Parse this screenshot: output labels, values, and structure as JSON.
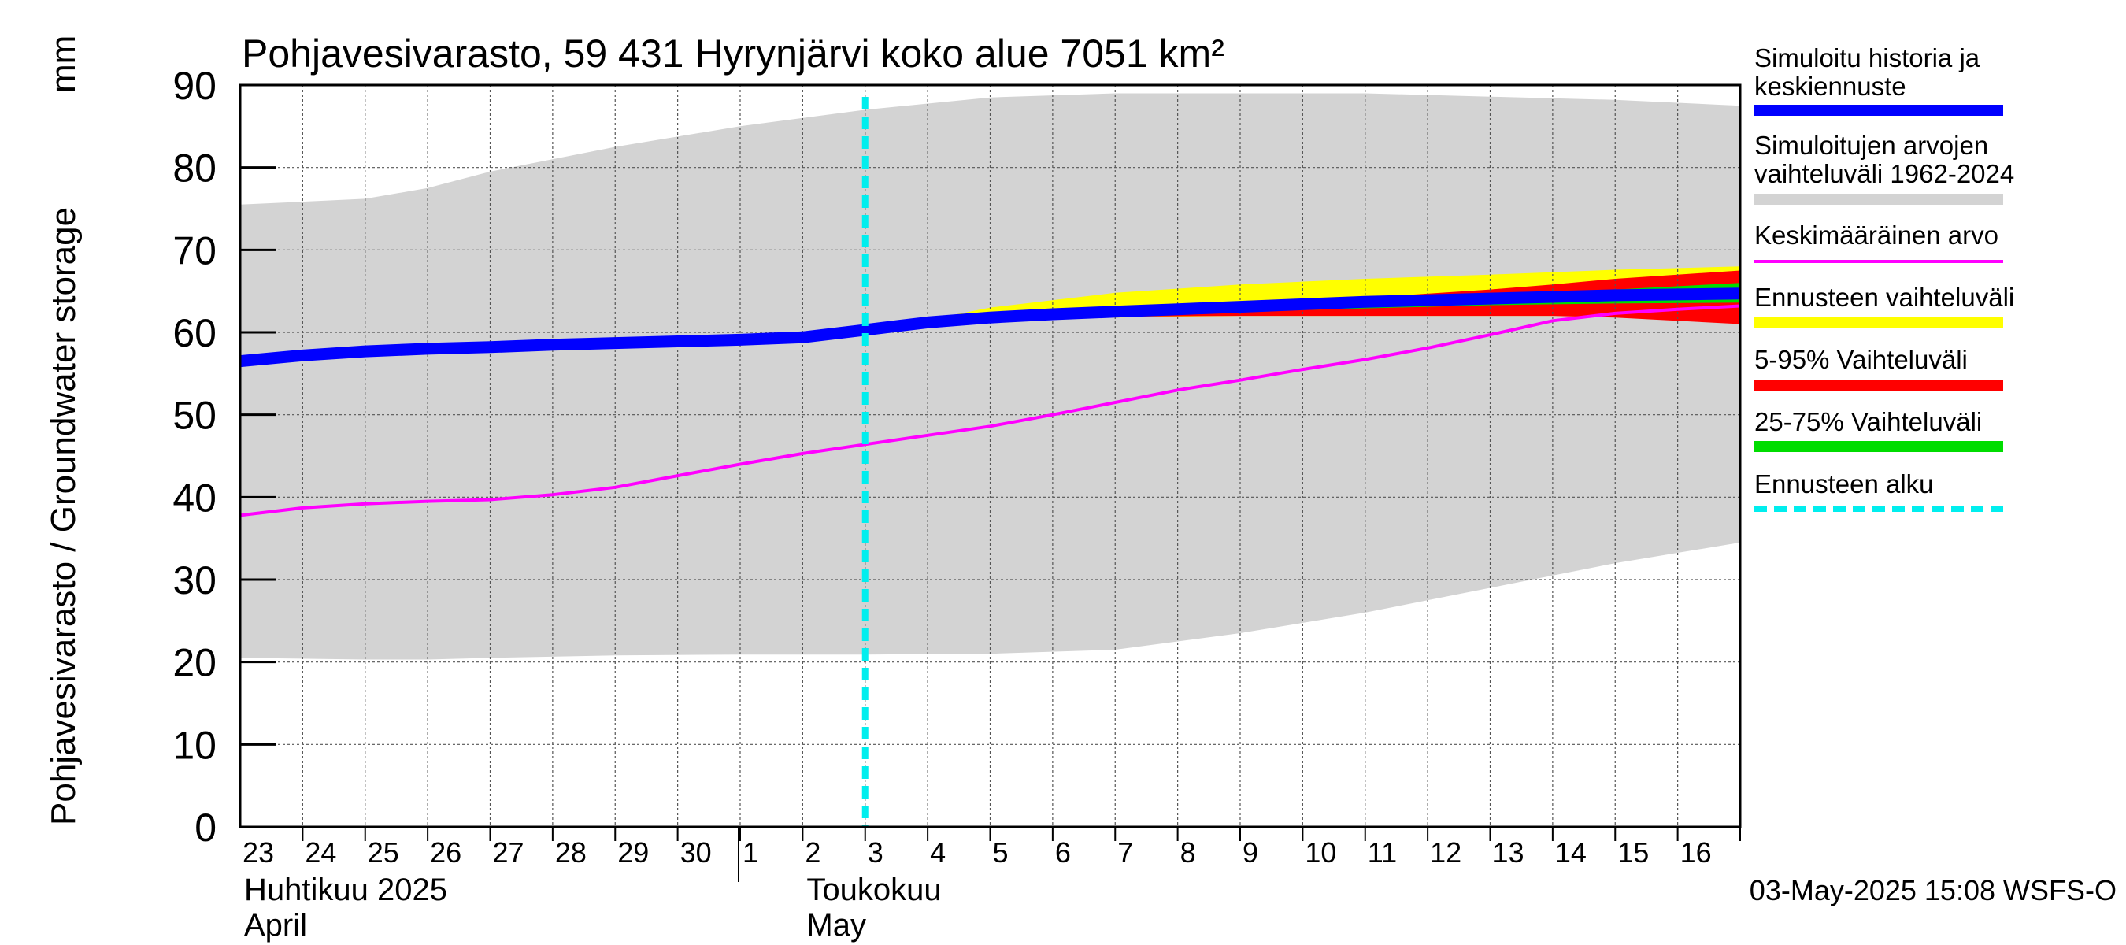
{
  "chart_data": {
    "type": "area",
    "title": "Pohjavesivarasto, 59 431 Hyrynjärvi koko alue 7051 km²",
    "ylabel": "Pohjavesivarasto / Groundwater storage",
    "yunit": "mm",
    "ylim": [
      0,
      90
    ],
    "yticks": [
      0,
      10,
      20,
      30,
      40,
      50,
      60,
      70,
      80,
      90
    ],
    "xlim": [
      0,
      24
    ],
    "x_tick_labels": [
      "23",
      "24",
      "25",
      "26",
      "27",
      "28",
      "29",
      "30",
      "1",
      "2",
      "3",
      "4",
      "5",
      "6",
      "7",
      "8",
      "9",
      "10",
      "11",
      "12",
      "13",
      "14",
      "15",
      "16"
    ],
    "month_labels": [
      {
        "line1": "Huhtikuu  2025",
        "line2": "April",
        "at_day": 0
      },
      {
        "line1": "Toukokuu",
        "line2": "May",
        "at_day": 9
      }
    ],
    "grid": true,
    "forecast_start_day": 10,
    "series": [
      {
        "name": "Simuloitujen arvojen vaihteluväli 1962-2024",
        "kind": "band",
        "color": "#d3d3d3",
        "x": [
          0,
          2,
          3,
          4,
          6,
          8,
          10,
          12,
          14,
          16,
          18,
          20,
          22,
          24
        ],
        "upper": [
          75.5,
          76.2,
          77.5,
          79.5,
          82.5,
          85,
          87,
          88.5,
          89,
          89,
          89,
          88.6,
          88.2,
          87.5
        ],
        "lower": [
          20.5,
          20.3,
          20.3,
          20.5,
          20.8,
          20.9,
          20.9,
          21.0,
          21.5,
          23.5,
          26,
          29,
          32,
          34.5
        ]
      },
      {
        "name": "Ennusteen vaihteluväli",
        "kind": "band",
        "color": "#ffff00",
        "x": [
          10,
          11,
          12,
          14,
          16,
          18,
          20,
          22,
          24
        ],
        "upper": [
          60.3,
          61.5,
          63,
          64.8,
          65.8,
          66.5,
          67,
          67.6,
          68
        ],
        "lower": [
          60.3,
          61,
          61.5,
          61.8,
          62,
          62,
          62,
          62,
          62
        ]
      },
      {
        "name": "5-95% Vaihteluväli",
        "kind": "band",
        "color": "#ff0000",
        "x": [
          10,
          11,
          12,
          14,
          16,
          18,
          20,
          21,
          22,
          24
        ],
        "upper": [
          60.3,
          61.3,
          62,
          62.8,
          63.4,
          64.2,
          65.2,
          65.8,
          66.5,
          67.5
        ],
        "lower": [
          60.3,
          61.2,
          61.6,
          61.9,
          62,
          62,
          62,
          62,
          61.8,
          61
        ]
      },
      {
        "name": "25-75% Vaihteluväli",
        "kind": "band",
        "color": "#00dd00",
        "x": [
          10,
          12,
          14,
          16,
          18,
          20,
          21,
          22,
          24
        ],
        "upper": [
          60.3,
          61.6,
          62.4,
          62.9,
          63.4,
          64,
          64.6,
          65.2,
          66
        ],
        "lower": [
          60.3,
          61.5,
          62.1,
          62.5,
          62.9,
          63.3,
          63.4,
          63.5,
          63.6
        ]
      },
      {
        "name": "Simuloitu historia ja keskiennuste",
        "kind": "line",
        "color": "#0000ff",
        "x": [
          0,
          1,
          2,
          3,
          4,
          5,
          6,
          7,
          8,
          9,
          10,
          11,
          12,
          13,
          14,
          15,
          16,
          17,
          18,
          19,
          20,
          21,
          22,
          23,
          24
        ],
        "y": [
          56.5,
          57.2,
          57.7,
          58,
          58.2,
          58.5,
          58.7,
          58.9,
          59.1,
          59.4,
          60.3,
          61.2,
          61.8,
          62.2,
          62.5,
          62.8,
          63.1,
          63.4,
          63.7,
          63.9,
          64.1,
          64.3,
          64.5,
          64.6,
          64.7
        ]
      },
      {
        "name": "Keskimääräinen arvo",
        "kind": "line",
        "color": "#ff00ff",
        "x": [
          0,
          1,
          2,
          3,
          4,
          5,
          6,
          7,
          8,
          9,
          10,
          11,
          12,
          13,
          14,
          15,
          16,
          17,
          18,
          19,
          20,
          21,
          22,
          23,
          24
        ],
        "y": [
          37.8,
          38.7,
          39.2,
          39.5,
          39.7,
          40.3,
          41.2,
          42.6,
          44,
          45.3,
          46.4,
          47.5,
          48.6,
          50,
          51.5,
          53,
          54.2,
          55.5,
          56.7,
          58.1,
          59.7,
          61.4,
          62.3,
          62.8,
          63.2
        ]
      },
      {
        "name": "Ennusteen alku",
        "kind": "vline",
        "color": "#00eeee",
        "x": 10
      }
    ],
    "legend": {
      "placement": "right",
      "entries": [
        {
          "label": "Simuloitu historia ja keskiennuste",
          "color": "#0000ff",
          "style": "thick"
        },
        {
          "label": "Simuloitujen arvojen vaihteluväli 1962-2024",
          "color": "#d3d3d3",
          "style": "thick"
        },
        {
          "label": "Keskimääräinen arvo",
          "color": "#ff00ff",
          "style": "thin"
        },
        {
          "label": "Ennusteen vaihteluväli",
          "color": "#ffff00",
          "style": "thick"
        },
        {
          "label": "5-95% Vaihteluväli",
          "color": "#ff0000",
          "style": "thick"
        },
        {
          "label": "25-75% Vaihteluväli",
          "color": "#00dd00",
          "style": "thick"
        },
        {
          "label": "Ennusteen alku",
          "color": "#00eeee",
          "style": "dashed"
        }
      ]
    },
    "footer": "03-May-2025 15:08 WSFS-O"
  }
}
